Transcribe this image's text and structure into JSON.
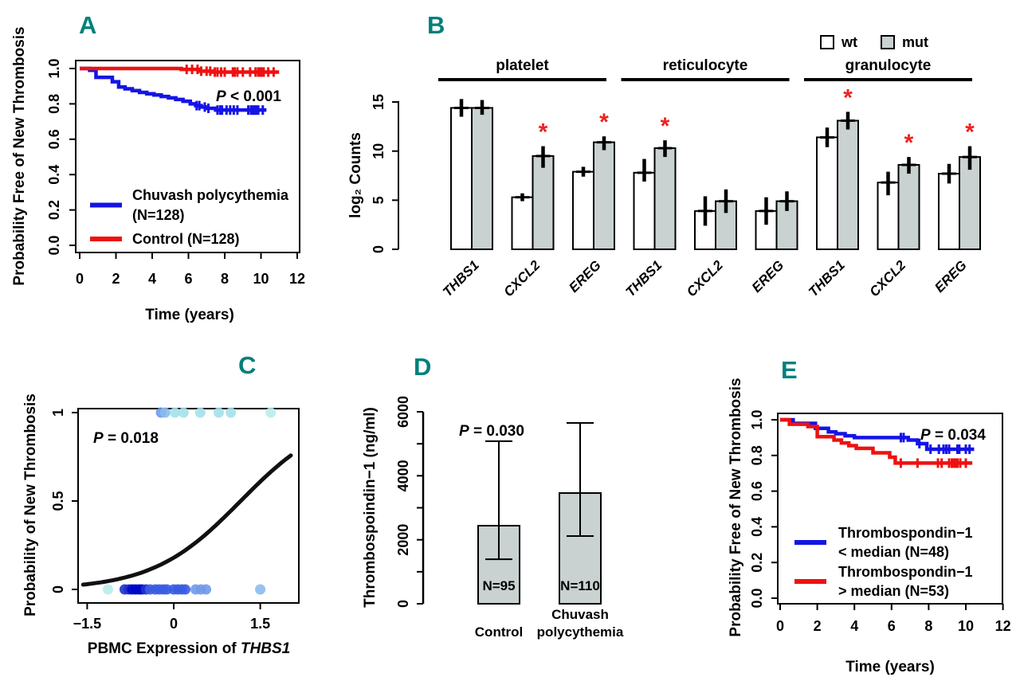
{
  "colors": {
    "km_blue": "#1414e6",
    "km_red": "#ee1111",
    "bar_fill": "#c9d1d1",
    "bar_stroke": "#000000",
    "sig_star": "#ee2222",
    "panel_letter": "#00807b",
    "curve_black": "#111111",
    "dot_palette": {
      "b1": "#0008c8",
      "b2": "#2030d2",
      "b3": "#3a5ce2",
      "b4": "#6f9ae9",
      "b5": "#8abbee",
      "b6": "#a5e0ec",
      "b7": "#b9eceb"
    }
  },
  "chart_data": [
    {
      "letter": "A",
      "type": "km",
      "xlabel": "Time (years)",
      "ylabel": "Probability Free of New Thrombosis",
      "xtick_values": [
        0,
        2,
        4,
        6,
        8,
        10,
        12
      ],
      "xtick_labels": [
        "0",
        "2",
        "4",
        "6",
        "8",
        "10",
        "12"
      ],
      "ytick_values": [
        0,
        0.2,
        0.4,
        0.6,
        0.8,
        1.0
      ],
      "ytick_labels": [
        "0.0",
        "0.2",
        "0.4",
        "0.6",
        "0.8",
        "1.0"
      ],
      "xlim": [
        0,
        12
      ],
      "ylim": [
        0,
        1
      ],
      "annotation": "P < 0.001",
      "series": [
        {
          "name": "Chuvash polycythemia (N=128)",
          "color_key": "km_blue",
          "legend_lines": [
            "Chuvash polycythemia",
            "(N=128)"
          ],
          "steps": [
            [
              0,
              1.0
            ],
            [
              0.55,
              0.99
            ],
            [
              0.9,
              0.95
            ],
            [
              1.8,
              0.925
            ],
            [
              2.15,
              0.895
            ],
            [
              2.5,
              0.885
            ],
            [
              2.9,
              0.875
            ],
            [
              3.3,
              0.865
            ],
            [
              3.7,
              0.857
            ],
            [
              4.1,
              0.85
            ],
            [
              4.5,
              0.842
            ],
            [
              4.9,
              0.834
            ],
            [
              5.3,
              0.825
            ],
            [
              5.7,
              0.815
            ],
            [
              6.1,
              0.8
            ],
            [
              6.4,
              0.79
            ],
            [
              6.7,
              0.782
            ],
            [
              7.0,
              0.775
            ],
            [
              7.5,
              0.765
            ],
            [
              10.3,
              0.765
            ]
          ],
          "censors": [
            6.45,
            6.6,
            6.9,
            7.1,
            7.6,
            7.75,
            7.85,
            8.1,
            8.3,
            8.5,
            8.7,
            9.3,
            9.45,
            9.55,
            9.65,
            9.75,
            9.85,
            10.1
          ]
        },
        {
          "name": "Control (N=128)",
          "color_key": "km_red",
          "legend_lines": [
            "Control (N=128)"
          ],
          "steps": [
            [
              0,
              1.0
            ],
            [
              5.6,
              0.995
            ],
            [
              6.6,
              0.985
            ],
            [
              7.3,
              0.98
            ],
            [
              11.0,
              0.98
            ]
          ],
          "censors": [
            5.9,
            6.2,
            6.5,
            6.7,
            7.0,
            7.2,
            7.45,
            7.6,
            7.8,
            8.0,
            8.45,
            8.55,
            8.7,
            9.0,
            9.4,
            9.7,
            9.85,
            9.95,
            10.05,
            10.15,
            10.4,
            10.7
          ]
        }
      ]
    },
    {
      "letter": "B",
      "type": "grouped_bar",
      "ylabel": "log₂ Counts",
      "ytick_values": [
        0,
        5,
        10,
        15
      ],
      "ytick_labels": [
        "0",
        "5",
        "10",
        "15"
      ],
      "ylim": [
        0,
        15.5
      ],
      "legend": [
        {
          "label": "wt",
          "fill": "#ffffff"
        },
        {
          "label": "mut",
          "fill": "#c9d1d1"
        }
      ],
      "groups": [
        {
          "label": "platelet",
          "bars": [
            {
              "gene": "THBS1",
              "wt": {
                "v": 14.4,
                "lo": 13.5,
                "hi": 15.3
              },
              "mut": {
                "v": 14.4,
                "lo": 13.7,
                "hi": 15.2,
                "sig": false
              }
            },
            {
              "gene": "CXCL2",
              "wt": {
                "v": 5.3,
                "lo": 4.9,
                "hi": 5.7
              },
              "mut": {
                "v": 9.5,
                "lo": 8.3,
                "hi": 10.5,
                "sig": true
              }
            },
            {
              "gene": "EREG",
              "wt": {
                "v": 7.9,
                "lo": 7.4,
                "hi": 8.4
              },
              "mut": {
                "v": 10.9,
                "lo": 10.1,
                "hi": 11.5,
                "sig": true
              }
            }
          ]
        },
        {
          "label": "reticulocyte",
          "bars": [
            {
              "gene": "THBS1",
              "wt": {
                "v": 7.8,
                "lo": 6.9,
                "hi": 9.2
              },
              "mut": {
                "v": 10.3,
                "lo": 9.4,
                "hi": 11.1,
                "sig": true
              }
            },
            {
              "gene": "CXCL2",
              "wt": {
                "v": 3.9,
                "lo": 2.4,
                "hi": 5.4
              },
              "mut": {
                "v": 4.9,
                "lo": 3.7,
                "hi": 6.1,
                "sig": false
              }
            },
            {
              "gene": "EREG",
              "wt": {
                "v": 3.9,
                "lo": 2.5,
                "hi": 5.3
              },
              "mut": {
                "v": 4.9,
                "lo": 3.9,
                "hi": 5.9,
                "sig": false
              }
            }
          ]
        },
        {
          "label": "granulocyte",
          "bars": [
            {
              "gene": "THBS1",
              "wt": {
                "v": 11.4,
                "lo": 10.4,
                "hi": 12.4
              },
              "mut": {
                "v": 13.1,
                "lo": 12.2,
                "hi": 14.0,
                "sig": true
              }
            },
            {
              "gene": "CXCL2",
              "wt": {
                "v": 6.8,
                "lo": 5.5,
                "hi": 7.9
              },
              "mut": {
                "v": 8.6,
                "lo": 7.7,
                "hi": 9.4,
                "sig": true
              }
            },
            {
              "gene": "EREG",
              "wt": {
                "v": 7.7,
                "lo": 6.7,
                "hi": 8.7
              },
              "mut": {
                "v": 9.4,
                "lo": 8.1,
                "hi": 10.5,
                "sig": true
              }
            }
          ]
        }
      ]
    },
    {
      "letter": "C",
      "type": "logistic_scatter",
      "xlabel_prefix": "PBMC Expression of ",
      "xlabel_gene": "THBS1",
      "ylabel": "Probability of New Thrombosis",
      "xtick_values": [
        -1.5,
        0,
        1.5
      ],
      "xtick_labels": [
        "−1.5",
        "0",
        "1.5"
      ],
      "ytick_values": [
        0,
        0.5,
        1
      ],
      "ytick_labels": [
        "0",
        "0.5",
        "1"
      ],
      "annotation": "P = 0.018",
      "curve": {
        "a": -1.52,
        "b": 1.31,
        "x_start": -1.57,
        "x_end": 2.03
      },
      "points_top": [
        [
          -0.22,
          "b4"
        ],
        [
          -0.15,
          "b5"
        ],
        [
          0.02,
          "b6"
        ],
        [
          0.17,
          "b6"
        ],
        [
          0.46,
          "b6"
        ],
        [
          0.78,
          "b6"
        ],
        [
          0.99,
          "b6"
        ],
        [
          1.68,
          "b7"
        ]
      ],
      "points_bottom": [
        [
          -1.14,
          "b7"
        ],
        [
          -0.85,
          "b2"
        ],
        [
          -0.78,
          "b2"
        ],
        [
          -0.72,
          "b1"
        ],
        [
          -0.66,
          "b1"
        ],
        [
          -0.6,
          "b1"
        ],
        [
          -0.55,
          "b1"
        ],
        [
          -0.48,
          "b2"
        ],
        [
          -0.41,
          "b3"
        ],
        [
          -0.32,
          "b3"
        ],
        [
          -0.25,
          "b3"
        ],
        [
          -0.18,
          "b3"
        ],
        [
          -0.12,
          "b3"
        ],
        [
          0.0,
          "b3"
        ],
        [
          0.07,
          "b3"
        ],
        [
          0.14,
          "b3"
        ],
        [
          0.2,
          "b3"
        ],
        [
          0.38,
          "b4"
        ],
        [
          0.47,
          "b4"
        ],
        [
          0.56,
          "b4"
        ],
        [
          1.5,
          "b5"
        ]
      ]
    },
    {
      "letter": "D",
      "type": "bar_error",
      "ylabel": "Thrombospoindin−1 (ng/ml)",
      "ytick_major_values": [
        0,
        2000,
        4000,
        6000
      ],
      "ytick_major_labels": [
        "0",
        "2000",
        "4000",
        "6000"
      ],
      "ytick_minor_values": [
        1000,
        3000,
        5000
      ],
      "ylim": [
        0,
        6000
      ],
      "annotation": "P = 0.030",
      "bars": [
        {
          "label_lines": [
            "Control"
          ],
          "value": 2440,
          "lo": 1390,
          "hi": 5080,
          "n_label": "N=95"
        },
        {
          "label_lines": [
            "Chuvash",
            "polycythemia"
          ],
          "value": 3460,
          "lo": 2115,
          "hi": 5650,
          "n_label": "N=110"
        }
      ]
    },
    {
      "letter": "E",
      "type": "km",
      "xlabel": "Time (years)",
      "ylabel": "Probability Free of New Thrombosis",
      "xtick_values": [
        0,
        2,
        4,
        6,
        8,
        10,
        12
      ],
      "xtick_labels": [
        "0",
        "2",
        "4",
        "6",
        "8",
        "10",
        "12"
      ],
      "ytick_values": [
        0,
        0.2,
        0.4,
        0.6,
        0.8,
        1.0
      ],
      "ytick_labels": [
        "0.0",
        "0.2",
        "0.4",
        "0.6",
        "0.8",
        "1.0"
      ],
      "xlim": [
        0,
        12
      ],
      "ylim": [
        0,
        1
      ],
      "annotation": "P = 0.034",
      "series": [
        {
          "name": "Thrombospondin−1 < median (N=48)",
          "color_key": "km_blue",
          "legend_lines": [
            "Thrombospondin−1",
            "< median (N=48)"
          ],
          "steps": [
            [
              0,
              1.0
            ],
            [
              0.7,
              0.98
            ],
            [
              1.9,
              0.952
            ],
            [
              2.6,
              0.932
            ],
            [
              3.0,
              0.922
            ],
            [
              3.5,
              0.91
            ],
            [
              4.0,
              0.9
            ],
            [
              6.9,
              0.886
            ],
            [
              7.4,
              0.866
            ],
            [
              7.9,
              0.835
            ],
            [
              10.45,
              0.835
            ]
          ],
          "censors": [
            6.5,
            6.65,
            7.5,
            8.1,
            8.55,
            8.8,
            8.95,
            9.1,
            9.55,
            9.65,
            10.0,
            10.2
          ]
        },
        {
          "name": "Thrombospondin−1 > median (N=53)",
          "color_key": "km_red",
          "legend_lines": [
            "Thrombospondin−1",
            "> median (N=53)"
          ],
          "steps": [
            [
              0,
              1.0
            ],
            [
              0.5,
              0.975
            ],
            [
              1.5,
              0.962
            ],
            [
              2.0,
              0.905
            ],
            [
              2.9,
              0.886
            ],
            [
              3.3,
              0.87
            ],
            [
              3.7,
              0.855
            ],
            [
              4.1,
              0.84
            ],
            [
              5.0,
              0.815
            ],
            [
              5.9,
              0.79
            ],
            [
              6.2,
              0.757
            ],
            [
              10.35,
              0.757
            ]
          ],
          "censors": [
            6.5,
            7.4,
            8.5,
            8.7,
            9.1,
            9.25,
            9.35,
            9.45,
            9.55,
            9.7,
            10.0
          ]
        }
      ]
    }
  ]
}
